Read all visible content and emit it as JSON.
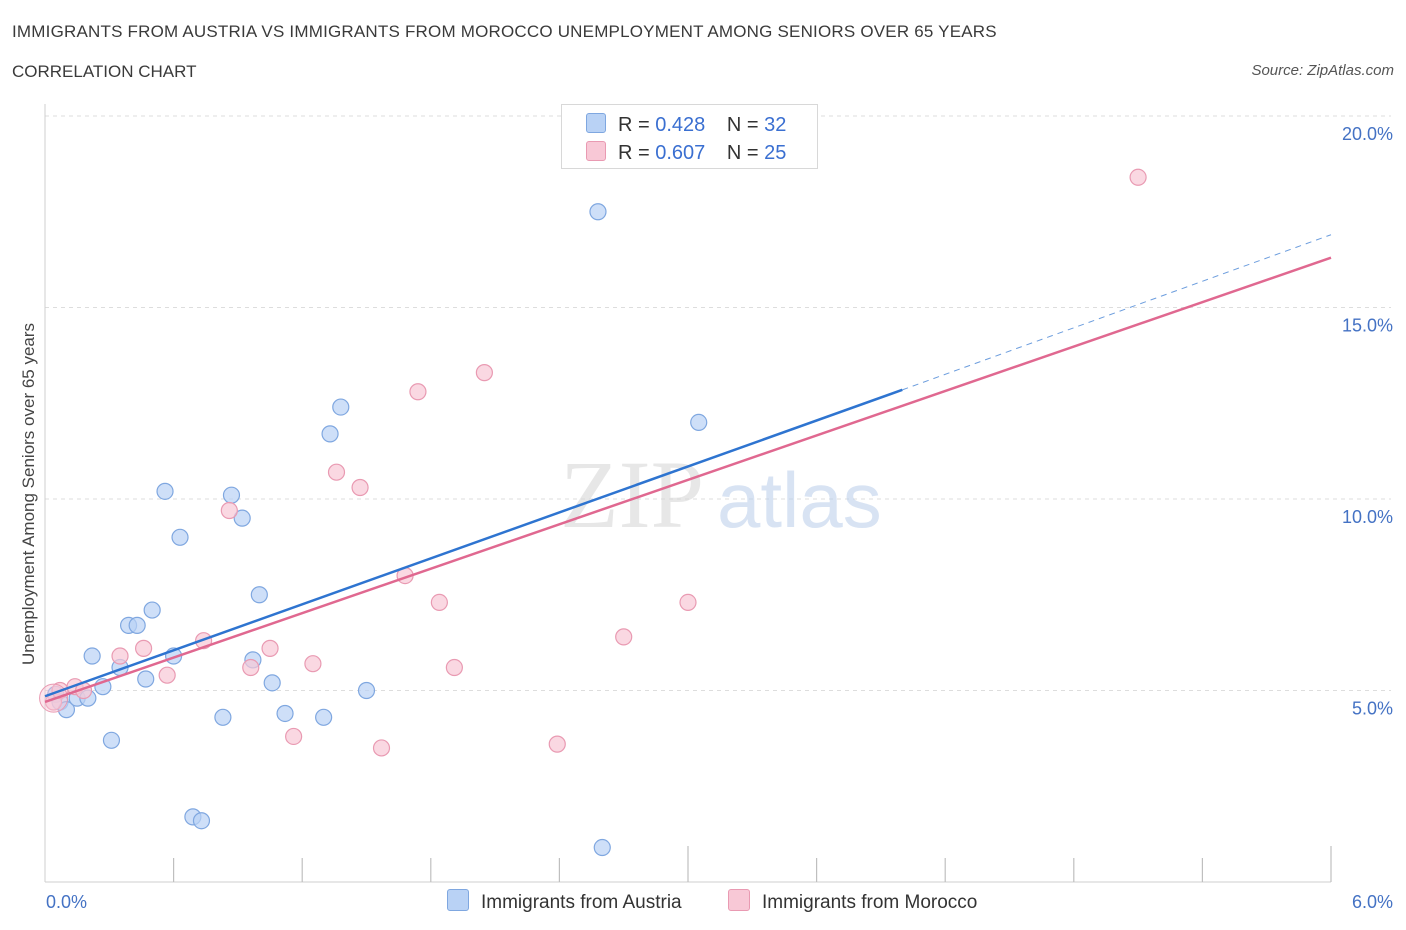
{
  "header": {
    "title": "IMMIGRANTS FROM AUSTRIA VS IMMIGRANTS FROM MOROCCO UNEMPLOYMENT AMONG SENIORS OVER 65 YEARS",
    "subtitle": "CORRELATION CHART",
    "source": "Source: ZipAtlas.com"
  },
  "watermark": {
    "zip": "ZIP",
    "atlas": "atlas"
  },
  "legend": {
    "austria": {
      "r_label": "R =",
      "r_value": "0.428",
      "n_label": "N =",
      "n_value": "32"
    },
    "morocco": {
      "r_label": "R =",
      "r_value": "0.607",
      "n_label": "N =",
      "n_value": "25"
    }
  },
  "bottom_legend": {
    "austria": "Immigrants from Austria",
    "morocco": "Immigrants from Morocco"
  },
  "colors": {
    "austria_fill": "#b9d2f5",
    "austria_stroke": "#7fa7e0",
    "austria_line": "#2e74d0",
    "morocco_fill": "#f8c8d6",
    "morocco_stroke": "#e99ab2",
    "morocco_line": "#e06890",
    "grid": "#dddddd",
    "tick_text": "#4472c4"
  },
  "chart_data": {
    "type": "scatter",
    "title": "IMMIGRANTS FROM AUSTRIA VS IMMIGRANTS FROM MOROCCO UNEMPLOYMENT AMONG SENIORS OVER 65 YEARS",
    "xlabel": "",
    "ylabel": "Unemployment Among Seniors over 65 years",
    "xlim": [
      0,
      6
    ],
    "ylim": [
      0,
      20
    ],
    "x_tick_labels": [
      "0.0%",
      "6.0%"
    ],
    "y_ticks": [
      5,
      10,
      15,
      20
    ],
    "y_tick_labels": [
      "5.0%",
      "10.0%",
      "15.0%",
      "20.0%"
    ],
    "grid": "horizontal dashed",
    "legend_position": "top-center",
    "series": [
      {
        "name": "Immigrants from Austria",
        "R": 0.428,
        "N": 32,
        "points": [
          [
            0.05,
            4.9
          ],
          [
            0.07,
            4.7
          ],
          [
            0.1,
            4.5
          ],
          [
            0.15,
            4.8
          ],
          [
            0.2,
            4.8
          ],
          [
            0.22,
            5.9
          ],
          [
            0.27,
            5.1
          ],
          [
            0.31,
            3.7
          ],
          [
            0.35,
            5.6
          ],
          [
            0.39,
            6.7
          ],
          [
            0.43,
            6.7
          ],
          [
            0.47,
            5.3
          ],
          [
            0.5,
            7.1
          ],
          [
            0.56,
            10.2
          ],
          [
            0.6,
            5.9
          ],
          [
            0.63,
            9.0
          ],
          [
            0.69,
            1.7
          ],
          [
            0.73,
            1.6
          ],
          [
            0.83,
            4.3
          ],
          [
            0.87,
            10.1
          ],
          [
            0.92,
            9.5
          ],
          [
            0.97,
            5.8
          ],
          [
            1.0,
            7.5
          ],
          [
            1.06,
            5.2
          ],
          [
            1.12,
            4.4
          ],
          [
            1.3,
            4.3
          ],
          [
            1.33,
            11.7
          ],
          [
            1.38,
            12.4
          ],
          [
            1.5,
            5.0
          ],
          [
            2.58,
            17.5
          ],
          [
            2.6,
            0.9
          ],
          [
            3.05,
            12.0
          ]
        ],
        "trend": {
          "x": [
            0,
            4.0
          ],
          "y": [
            4.85,
            12.85
          ],
          "dashed_extension": {
            "x": [
              4.0,
              6.0
            ],
            "y": [
              12.85,
              16.9
            ]
          }
        }
      },
      {
        "name": "Immigrants from Morocco",
        "R": 0.607,
        "N": 25,
        "points": [
          [
            0.04,
            4.7
          ],
          [
            0.07,
            5.0
          ],
          [
            0.14,
            5.1
          ],
          [
            0.18,
            5.0
          ],
          [
            0.35,
            5.9
          ],
          [
            0.46,
            6.1
          ],
          [
            0.57,
            5.4
          ],
          [
            0.74,
            6.3
          ],
          [
            0.86,
            9.7
          ],
          [
            0.96,
            5.6
          ],
          [
            1.05,
            6.1
          ],
          [
            1.16,
            3.8
          ],
          [
            1.25,
            5.7
          ],
          [
            1.36,
            10.7
          ],
          [
            1.47,
            10.3
          ],
          [
            1.57,
            3.5
          ],
          [
            1.68,
            8.0
          ],
          [
            1.74,
            12.8
          ],
          [
            1.84,
            7.3
          ],
          [
            1.91,
            5.6
          ],
          [
            2.05,
            13.3
          ],
          [
            2.39,
            3.6
          ],
          [
            2.7,
            6.4
          ],
          [
            3.0,
            7.3
          ],
          [
            5.1,
            18.4
          ]
        ],
        "trend": {
          "x": [
            0,
            6.0
          ],
          "y": [
            4.7,
            16.3
          ]
        }
      }
    ]
  }
}
